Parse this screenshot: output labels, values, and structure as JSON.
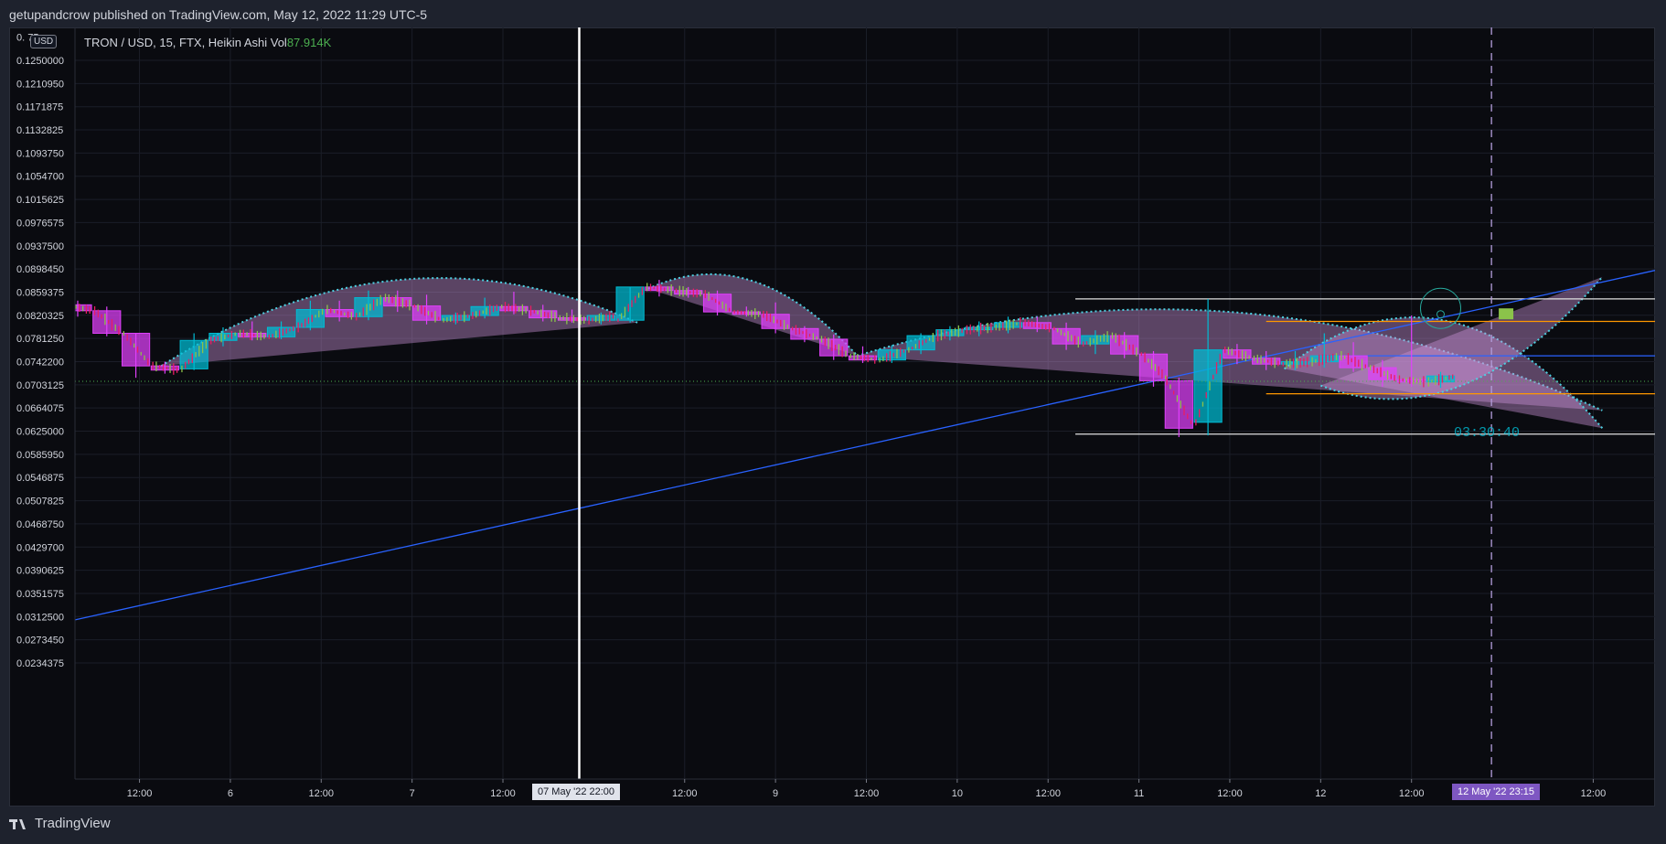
{
  "header": {
    "published": "getupandcrow published on TradingView.com, May 12, 2022 11:29 UTC-5"
  },
  "legend": {
    "symbol": "TRON / USD, 15, FTX, Heikin Ashi",
    "vol_label": "Vol",
    "vol_value": "87.914K"
  },
  "currency_badge": "USD",
  "footer": {
    "brand": "TradingView"
  },
  "timer": "03:30:40",
  "cursor": {
    "left_time": "07 May '22   22:00",
    "right_time": "12 May '22   23:15",
    "top_price_partial": "0.   75"
  },
  "colors": {
    "bg": "#0a0b10",
    "bull": "#8bc34a",
    "bear": "#e91e63",
    "ha_up": "#00bcd4",
    "ha_down": "#e040fb",
    "trend": "#2962ff",
    "arc_fill": "#ce93d8",
    "arc_edge": "#4dd0e1",
    "orange": "#ff9800",
    "white": "#ffffff"
  },
  "chart_data": {
    "type": "candlestick",
    "style": "Heikin Ashi",
    "symbol": "TRON / USD",
    "interval": "15",
    "exchange": "FTX",
    "y_axis_labels": [
      "0.1250000",
      "0.1210950",
      "0.1171875",
      "0.1132825",
      "0.1093750",
      "0.1054700",
      "0.1015625",
      "0.0976575",
      "0.0937500",
      "0.0898450",
      "0.0859375",
      "0.0820325",
      "0.0781250",
      "0.0742200",
      "0.0703125",
      "0.0664075",
      "0.0625000",
      "0.0585950",
      "0.0546875",
      "0.0507825",
      "0.0468750",
      "0.0429700",
      "0.0390625",
      "0.0351575",
      "0.0312500",
      "0.0273450",
      "0.0234375"
    ],
    "y_axis_values": [
      0.125,
      0.121095,
      0.1171875,
      0.1132825,
      0.109375,
      0.10547,
      0.1015625,
      0.0976575,
      0.09375,
      0.089845,
      0.0859375,
      0.0820325,
      0.078125,
      0.07422,
      0.0703125,
      0.0664075,
      0.0625,
      0.058595,
      0.0546875,
      0.0507825,
      0.046875,
      0.04297,
      0.0390625,
      0.0351575,
      0.03125,
      0.027345,
      0.0234375
    ],
    "x_axis_labels": [
      "12:00",
      "6",
      "12:00",
      "7",
      "12:00",
      "12:00",
      "9",
      "12:00",
      "10",
      "12:00",
      "11",
      "12:00",
      "12",
      "12:00",
      "12:00"
    ],
    "x_axis_times": [
      0.5,
      1,
      1.5,
      2,
      2.5,
      3.5,
      4,
      4.5,
      5,
      5.5,
      6,
      6.5,
      7,
      7.5,
      8.5
    ],
    "x_range": [
      0.145,
      8.84
    ],
    "y_range_note": "price scale",
    "current_price": 0.0709,
    "candles_4h": [
      {
        "t": 0.16,
        "o": 0.0838,
        "h": 0.0845,
        "l": 0.0818,
        "c": 0.0828
      },
      {
        "t": 0.32,
        "o": 0.0828,
        "h": 0.0835,
        "l": 0.0785,
        "c": 0.079
      },
      {
        "t": 0.48,
        "o": 0.079,
        "h": 0.079,
        "l": 0.0715,
        "c": 0.0735
      },
      {
        "t": 0.64,
        "o": 0.0735,
        "h": 0.0742,
        "l": 0.0722,
        "c": 0.0728
      },
      {
        "t": 0.8,
        "o": 0.073,
        "h": 0.079,
        "l": 0.0728,
        "c": 0.0778
      },
      {
        "t": 0.96,
        "o": 0.0778,
        "h": 0.08,
        "l": 0.0768,
        "c": 0.079
      },
      {
        "t": 1.12,
        "o": 0.079,
        "h": 0.081,
        "l": 0.0778,
        "c": 0.0784
      },
      {
        "t": 1.28,
        "o": 0.0784,
        "h": 0.081,
        "l": 0.078,
        "c": 0.08
      },
      {
        "t": 1.44,
        "o": 0.08,
        "h": 0.0845,
        "l": 0.0795,
        "c": 0.083
      },
      {
        "t": 1.6,
        "o": 0.083,
        "h": 0.0845,
        "l": 0.081,
        "c": 0.0818
      },
      {
        "t": 1.76,
        "o": 0.0818,
        "h": 0.0862,
        "l": 0.0812,
        "c": 0.085
      },
      {
        "t": 1.92,
        "o": 0.085,
        "h": 0.0862,
        "l": 0.0826,
        "c": 0.0836
      },
      {
        "t": 2.08,
        "o": 0.0836,
        "h": 0.0855,
        "l": 0.0805,
        "c": 0.0812
      },
      {
        "t": 2.24,
        "o": 0.0812,
        "h": 0.0825,
        "l": 0.0805,
        "c": 0.082
      },
      {
        "t": 2.4,
        "o": 0.082,
        "h": 0.085,
        "l": 0.0815,
        "c": 0.0835
      },
      {
        "t": 2.56,
        "o": 0.0835,
        "h": 0.086,
        "l": 0.0822,
        "c": 0.0828
      },
      {
        "t": 2.72,
        "o": 0.0828,
        "h": 0.0838,
        "l": 0.081,
        "c": 0.0816
      },
      {
        "t": 2.88,
        "o": 0.0816,
        "h": 0.083,
        "l": 0.0808,
        "c": 0.0812
      },
      {
        "t": 3.04,
        "o": 0.0812,
        "h": 0.0825,
        "l": 0.0805,
        "c": 0.082
      },
      {
        "t": 3.2,
        "o": 0.0812,
        "h": 0.0868,
        "l": 0.0808,
        "c": 0.0868
      },
      {
        "t": 3.36,
        "o": 0.0868,
        "h": 0.088,
        "l": 0.0852,
        "c": 0.0862
      },
      {
        "t": 3.52,
        "o": 0.0862,
        "h": 0.0868,
        "l": 0.085,
        "c": 0.0856
      },
      {
        "t": 3.68,
        "o": 0.0856,
        "h": 0.0862,
        "l": 0.082,
        "c": 0.0826
      },
      {
        "t": 3.84,
        "o": 0.0826,
        "h": 0.0835,
        "l": 0.0818,
        "c": 0.0822
      },
      {
        "t": 4.0,
        "o": 0.0822,
        "h": 0.0842,
        "l": 0.079,
        "c": 0.0798
      },
      {
        "t": 4.16,
        "o": 0.0798,
        "h": 0.0802,
        "l": 0.0775,
        "c": 0.078
      },
      {
        "t": 4.32,
        "o": 0.078,
        "h": 0.0788,
        "l": 0.0745,
        "c": 0.0752
      },
      {
        "t": 4.48,
        "o": 0.0752,
        "h": 0.0768,
        "l": 0.074,
        "c": 0.0745
      },
      {
        "t": 4.64,
        "o": 0.0745,
        "h": 0.077,
        "l": 0.074,
        "c": 0.0762
      },
      {
        "t": 4.8,
        "o": 0.0762,
        "h": 0.079,
        "l": 0.0755,
        "c": 0.0786
      },
      {
        "t": 4.96,
        "o": 0.0786,
        "h": 0.0802,
        "l": 0.0778,
        "c": 0.0796
      },
      {
        "t": 5.12,
        "o": 0.0796,
        "h": 0.081,
        "l": 0.0785,
        "c": 0.08
      },
      {
        "t": 5.28,
        "o": 0.08,
        "h": 0.0818,
        "l": 0.079,
        "c": 0.0808
      },
      {
        "t": 5.44,
        "o": 0.0808,
        "h": 0.0818,
        "l": 0.0792,
        "c": 0.0798
      },
      {
        "t": 5.6,
        "o": 0.0798,
        "h": 0.0808,
        "l": 0.0762,
        "c": 0.0772
      },
      {
        "t": 5.76,
        "o": 0.0772,
        "h": 0.0795,
        "l": 0.0755,
        "c": 0.0786
      },
      {
        "t": 5.92,
        "o": 0.0786,
        "h": 0.0792,
        "l": 0.0748,
        "c": 0.0755
      },
      {
        "t": 6.08,
        "o": 0.0755,
        "h": 0.076,
        "l": 0.07,
        "c": 0.071
      },
      {
        "t": 6.22,
        "o": 0.071,
        "h": 0.0715,
        "l": 0.0615,
        "c": 0.063
      },
      {
        "t": 6.38,
        "o": 0.064,
        "h": 0.0848,
        "l": 0.0618,
        "c": 0.0762
      },
      {
        "t": 6.54,
        "o": 0.0762,
        "h": 0.0772,
        "l": 0.0738,
        "c": 0.0748
      },
      {
        "t": 6.7,
        "o": 0.0748,
        "h": 0.076,
        "l": 0.0728,
        "c": 0.0738
      },
      {
        "t": 6.86,
        "o": 0.0738,
        "h": 0.076,
        "l": 0.0728,
        "c": 0.0742
      },
      {
        "t": 7.02,
        "o": 0.0742,
        "h": 0.079,
        "l": 0.0732,
        "c": 0.0752
      },
      {
        "t": 7.18,
        "o": 0.0752,
        "h": 0.0775,
        "l": 0.0725,
        "c": 0.0732
      },
      {
        "t": 7.34,
        "o": 0.0732,
        "h": 0.0745,
        "l": 0.07,
        "c": 0.0712
      },
      {
        "t": 7.5,
        "o": 0.0712,
        "h": 0.082,
        "l": 0.07,
        "c": 0.0708
      },
      {
        "t": 7.66,
        "o": 0.0708,
        "h": 0.0725,
        "l": 0.0698,
        "c": 0.0718
      }
    ],
    "trendline": [
      {
        "t": 0.145,
        "p": 0.0307
      },
      {
        "t": 8.84,
        "p": 0.0896
      }
    ],
    "arcs": [
      {
        "x1": 0.62,
        "p1": 0.0735,
        "x2": 3.24,
        "p2": 0.0808,
        "peak": 0.088
      },
      {
        "x1": 3.3,
        "p1": 0.0865,
        "x2": 4.45,
        "p2": 0.0752,
        "peak": 0.0878
      },
      {
        "x1": 4.45,
        "p1": 0.0752,
        "x2": 8.55,
        "p2": 0.066,
        "peak": 0.0826
      },
      {
        "x1": 6.8,
        "p1": 0.073,
        "x2": 8.55,
        "p2": 0.063,
        "peak": 0.0812
      },
      {
        "x1": 7.0,
        "p1": 0.0702,
        "x2": 8.55,
        "p2": 0.0885,
        "peak": 0.0702
      }
    ],
    "levels": [
      {
        "p": 0.0848,
        "x1": 5.65,
        "x2": 8.84,
        "color": "white"
      },
      {
        "p": 0.062,
        "x1": 5.65,
        "x2": 8.84,
        "color": "white"
      },
      {
        "p": 0.081,
        "x1": 6.7,
        "x2": 8.84,
        "color": "orange"
      },
      {
        "p": 0.0688,
        "x1": 6.7,
        "x2": 8.84,
        "color": "orange"
      },
      {
        "p": 0.0752,
        "x1": 7.0,
        "x2": 8.84,
        "color": "blue"
      }
    ],
    "cursor_times": {
      "left": 2.92,
      "right": 7.94
    }
  }
}
